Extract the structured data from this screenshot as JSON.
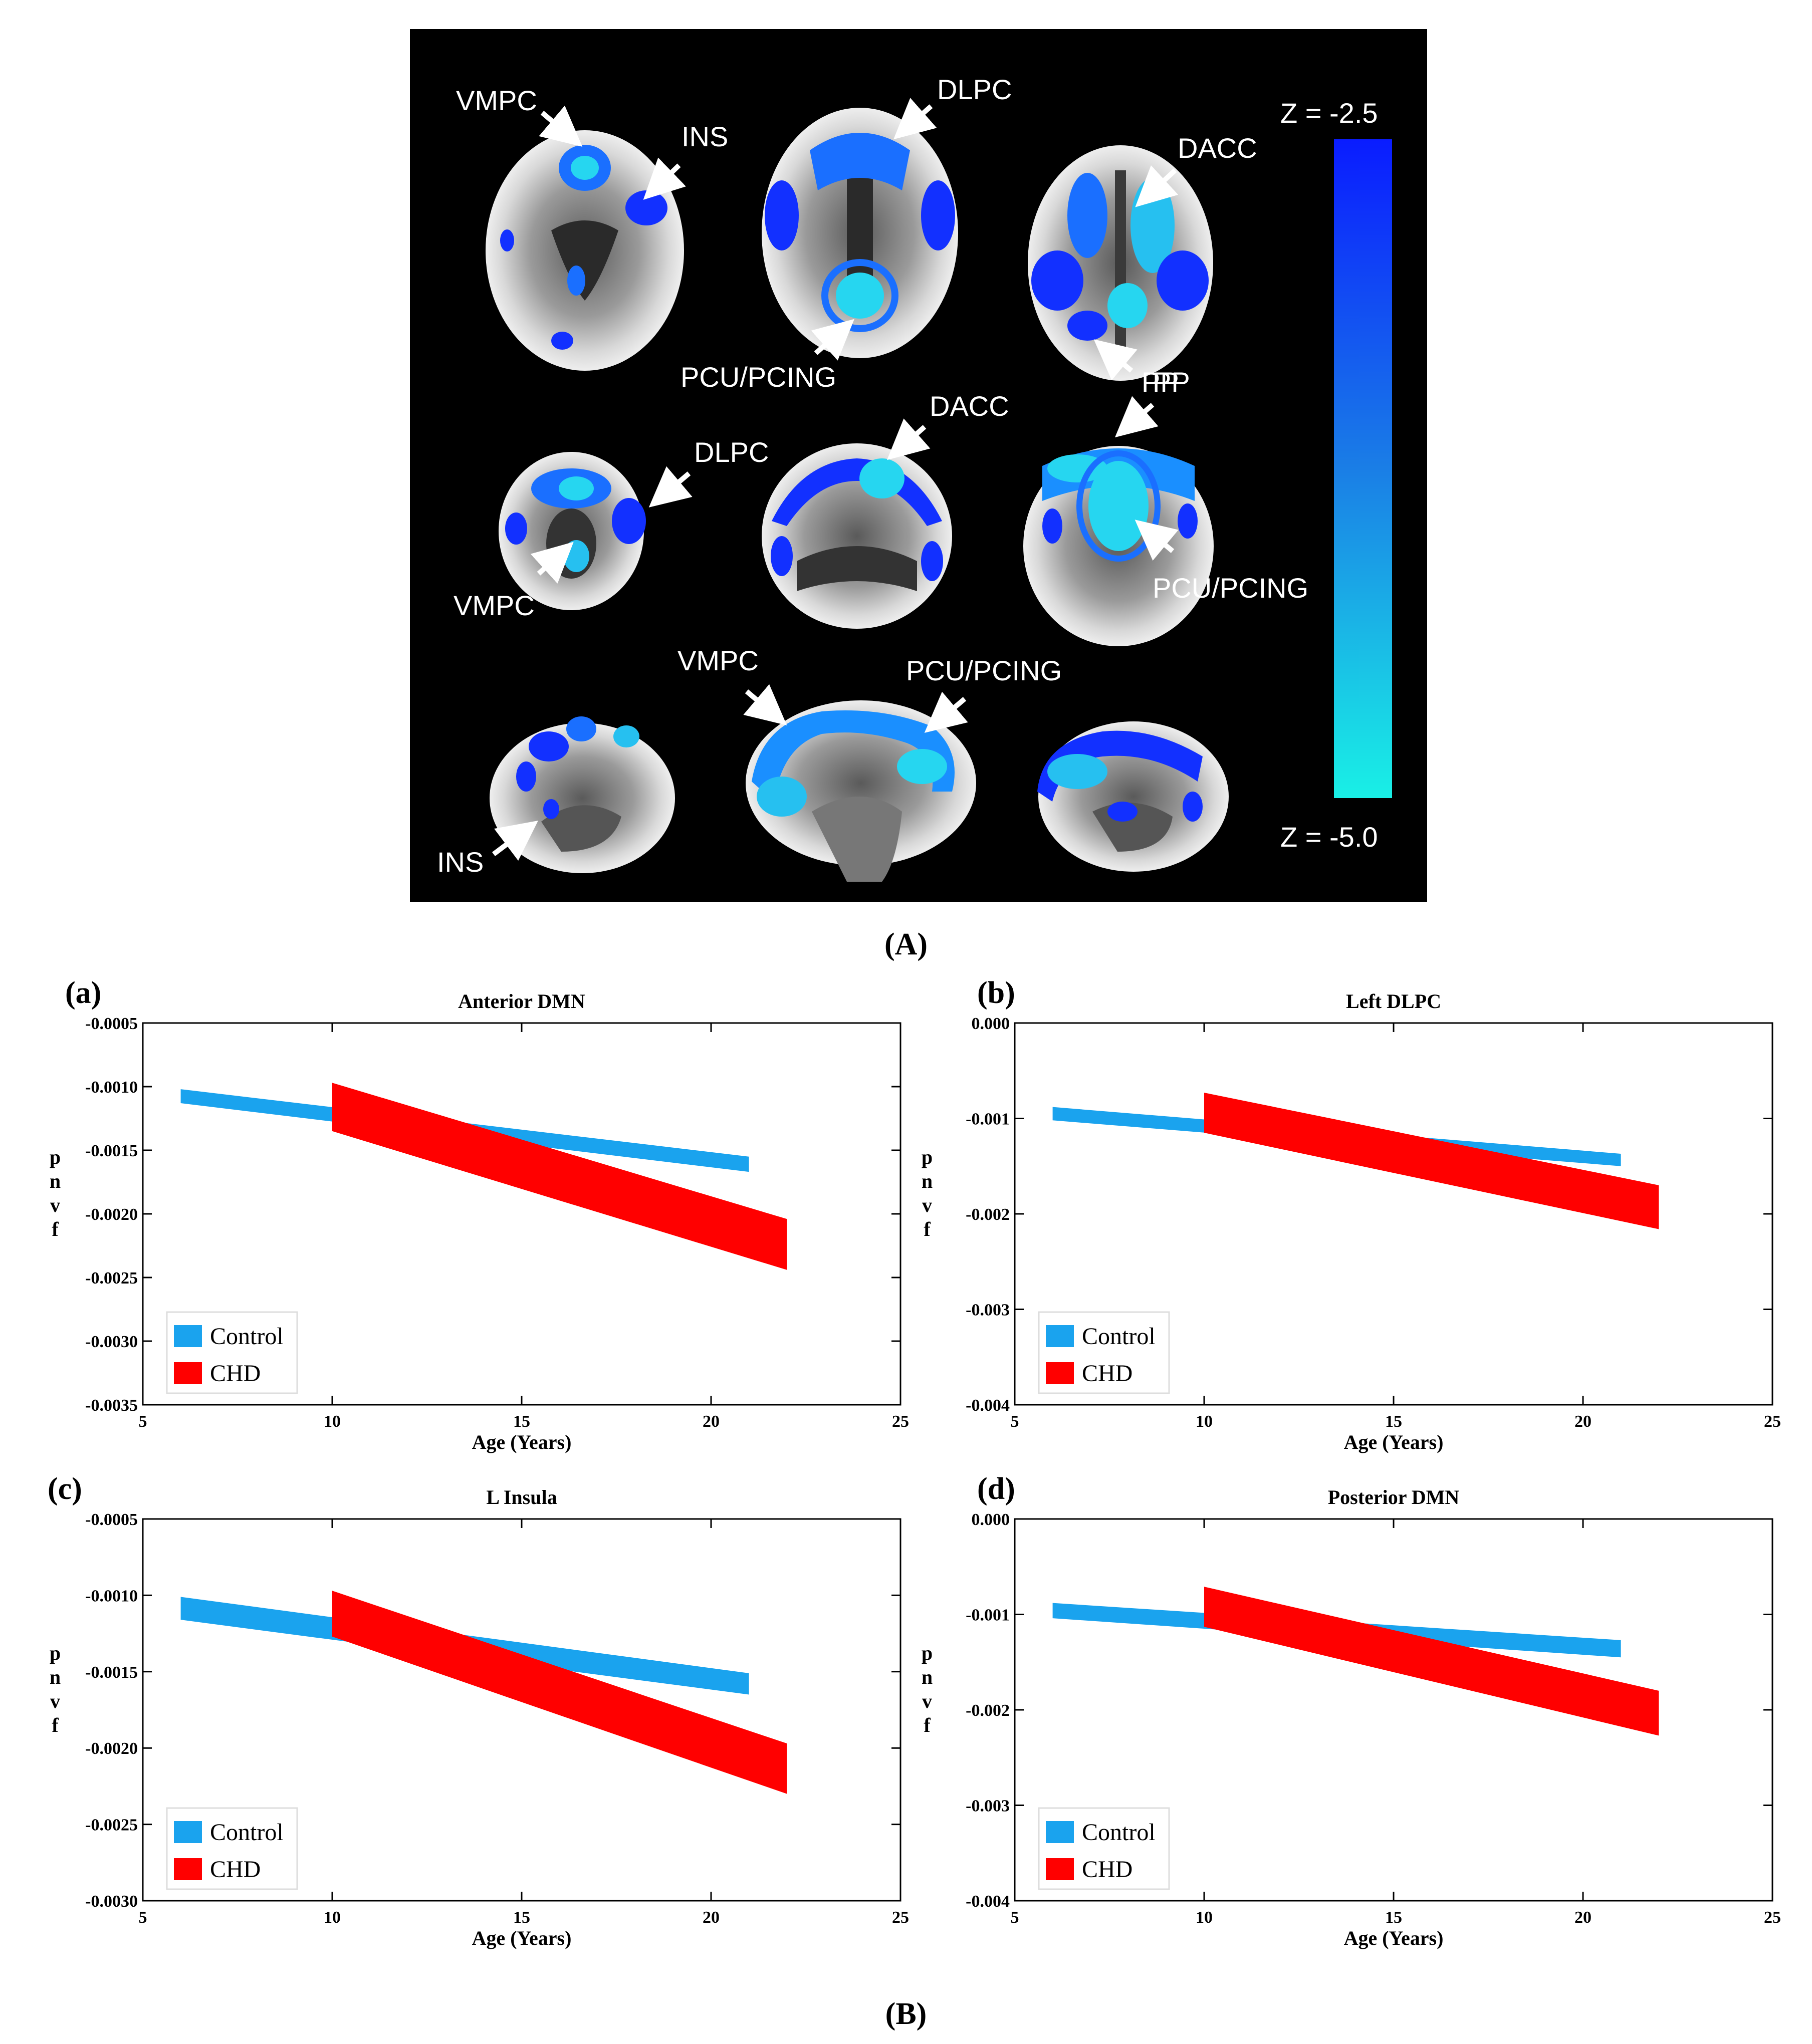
{
  "figure": {
    "panel_A_label": "(A)",
    "panel_B_label": "(B)"
  },
  "brain_panel": {
    "scale": {
      "top_label": "Z = -2.5",
      "bottom_label": "Z = -5.0",
      "color_top": "#0a1cff",
      "color_bottom": "#19f0e6"
    },
    "rows": [
      {
        "view": "axial",
        "slices": [
          {
            "labels": [
              "VMPC",
              "INS"
            ]
          },
          {
            "labels": [
              "DLPC",
              "PCU/PCING"
            ]
          },
          {
            "labels": [
              "DACC",
              "PP"
            ]
          }
        ]
      },
      {
        "view": "coronal",
        "slices": [
          {
            "labels": [
              "DLPC",
              "VMPC"
            ]
          },
          {
            "labels": [
              "DACC"
            ]
          },
          {
            "labels": [
              "PP",
              "PCU/PCING"
            ]
          }
        ]
      },
      {
        "view": "sagittal",
        "slices": [
          {
            "labels": [
              "INS"
            ]
          },
          {
            "labels": [
              "VMPC",
              "PCU/PCING"
            ]
          },
          {
            "labels": []
          }
        ]
      }
    ]
  },
  "colors": {
    "control": "#1aa3ee",
    "chd": "#ff0000"
  },
  "chart_data": [
    {
      "panel_label": "(a)",
      "type": "area",
      "title": "Anterior DMN",
      "xlabel": "Age (Years)",
      "ylabel": "pnvf",
      "xlim": [
        5,
        25
      ],
      "ylim": [
        -0.0035,
        -0.0005
      ],
      "xticks": [
        5,
        10,
        15,
        20,
        25
      ],
      "yticks": [
        "-0.0005",
        "-0.0010",
        "-0.0015",
        "-0.0020",
        "-0.0025",
        "-0.0030",
        "-0.0035"
      ],
      "legend": [
        "Control",
        "CHD"
      ],
      "legend_position": "bottom-left",
      "series": [
        {
          "name": "Control",
          "x": [
            6,
            21
          ],
          "upper": [
            -0.00102,
            -0.00155
          ],
          "lower": [
            -0.00113,
            -0.00167
          ]
        },
        {
          "name": "CHD",
          "x": [
            10,
            22
          ],
          "upper": [
            -0.00097,
            -0.00204
          ],
          "lower": [
            -0.00135,
            -0.00244
          ]
        }
      ]
    },
    {
      "panel_label": "(b)",
      "type": "area",
      "title": "Left DLPC",
      "xlabel": "Age (Years)",
      "ylabel": "pnvf",
      "xlim": [
        5,
        25
      ],
      "ylim": [
        -0.004,
        0
      ],
      "xticks": [
        5,
        10,
        15,
        20,
        25
      ],
      "yticks": [
        "0.000",
        "-0.001",
        "-0.002",
        "-0.003",
        "-0.004"
      ],
      "legend": [
        "Control",
        "CHD"
      ],
      "legend_position": "bottom-left",
      "series": [
        {
          "name": "Control",
          "x": [
            6,
            21
          ],
          "upper": [
            -0.00088,
            -0.00137
          ],
          "lower": [
            -0.00102,
            -0.0015
          ]
        },
        {
          "name": "CHD",
          "x": [
            10,
            22
          ],
          "upper": [
            -0.00073,
            -0.0017
          ],
          "lower": [
            -0.00115,
            -0.00216
          ]
        }
      ]
    },
    {
      "panel_label": "(c)",
      "type": "area",
      "title": "L Insula",
      "xlabel": "Age (Years)",
      "ylabel": "pnvf",
      "xlim": [
        5,
        25
      ],
      "ylim": [
        -0.003,
        -0.0005
      ],
      "xticks": [
        5,
        10,
        15,
        20,
        25
      ],
      "yticks": [
        "-0.0005",
        "-0.0010",
        "-0.0015",
        "-0.0020",
        "-0.0025",
        "-0.0030"
      ],
      "legend": [
        "Control",
        "CHD"
      ],
      "legend_position": "bottom-left",
      "series": [
        {
          "name": "Control",
          "x": [
            6,
            21
          ],
          "upper": [
            -0.00101,
            -0.00151
          ],
          "lower": [
            -0.00116,
            -0.00165
          ]
        },
        {
          "name": "CHD",
          "x": [
            10,
            22
          ],
          "upper": [
            -0.00097,
            -0.00197
          ],
          "lower": [
            -0.00127,
            -0.0023
          ]
        }
      ]
    },
    {
      "panel_label": "(d)",
      "type": "area",
      "title": "Posterior DMN",
      "xlabel": "Age (Years)",
      "ylabel": "pnvf",
      "xlim": [
        5,
        25
      ],
      "ylim": [
        -0.004,
        0
      ],
      "xticks": [
        5,
        10,
        15,
        20,
        25
      ],
      "yticks": [
        "0.000",
        "-0.001",
        "-0.002",
        "-0.003",
        "-0.004"
      ],
      "legend": [
        "Control",
        "CHD"
      ],
      "legend_position": "bottom-left",
      "series": [
        {
          "name": "Control",
          "x": [
            6,
            21
          ],
          "upper": [
            -0.00088,
            -0.00127
          ],
          "lower": [
            -0.00104,
            -0.00145
          ]
        },
        {
          "name": "CHD",
          "x": [
            10,
            22
          ],
          "upper": [
            -0.00071,
            -0.0018
          ],
          "lower": [
            -0.00113,
            -0.00227
          ]
        }
      ]
    }
  ]
}
